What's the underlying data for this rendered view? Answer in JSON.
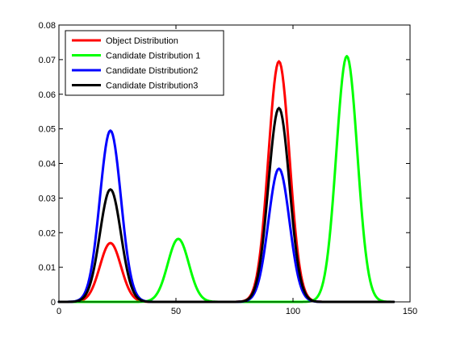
{
  "chart_data": {
    "type": "line",
    "xlim": [
      0,
      150
    ],
    "ylim": [
      0,
      0.08
    ],
    "x_ticks": [
      "0",
      "50",
      "100",
      "150"
    ],
    "y_ticks": [
      "0",
      "0.01",
      "0.02",
      "0.03",
      "0.04",
      "0.05",
      "0.06",
      "0.07",
      "0.08"
    ],
    "grid": false,
    "legend_position": "top-left",
    "series": [
      {
        "name": "Object Distribution",
        "color": "#ff0000",
        "peaks": [
          {
            "center": 22,
            "height": 0.017,
            "sigma": 4.5
          },
          {
            "center": 94,
            "height": 0.0695,
            "sigma": 4.5
          }
        ]
      },
      {
        "name": "Candidate Distribution 1",
        "color": "#00ff00",
        "peaks": [
          {
            "center": 51,
            "height": 0.0182,
            "sigma": 4.5
          },
          {
            "center": 123,
            "height": 0.071,
            "sigma": 4.5
          }
        ]
      },
      {
        "name": "Candidate Distribution2",
        "color": "#0000ff",
        "peaks": [
          {
            "center": 22,
            "height": 0.0495,
            "sigma": 4.5
          },
          {
            "center": 94,
            "height": 0.0385,
            "sigma": 4.5
          }
        ]
      },
      {
        "name": "Candidate Distribution3",
        "color": "#000000",
        "peaks": [
          {
            "center": 22,
            "height": 0.0325,
            "sigma": 4.5
          },
          {
            "center": 94,
            "height": 0.056,
            "sigma": 4.5
          }
        ]
      }
    ]
  }
}
